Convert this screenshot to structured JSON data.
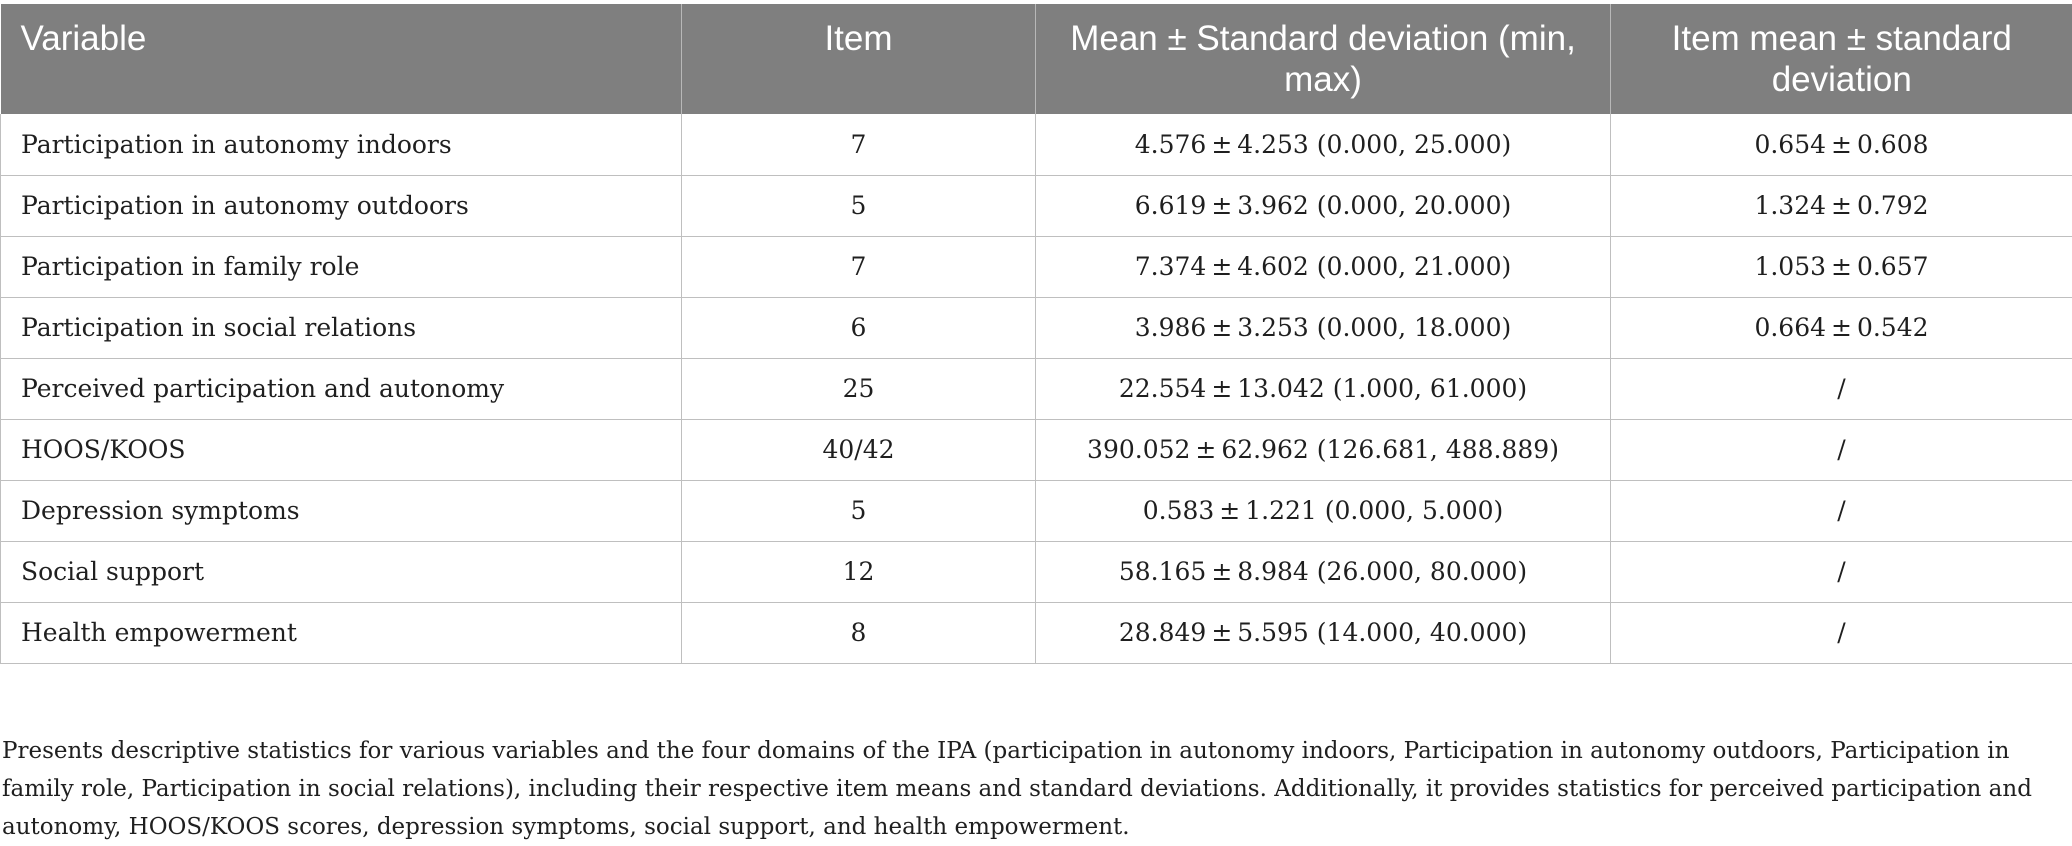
{
  "table": {
    "headers": [
      "Variable",
      "Item",
      "Mean ± Standard deviation (min, max)",
      "Item mean ± standard deviation"
    ],
    "rows": [
      [
        "Participation in autonomy indoors",
        "7",
        "4.576 ± 4.253 (0.000, 25.000)",
        "0.654 ± 0.608"
      ],
      [
        "Participation in autonomy outdoors",
        "5",
        "6.619 ± 3.962 (0.000, 20.000)",
        "1.324 ± 0.792"
      ],
      [
        "Participation in family role",
        "7",
        "7.374 ± 4.602 (0.000, 21.000)",
        "1.053 ± 0.657"
      ],
      [
        "Participation in social relations",
        "6",
        "3.986 ± 3.253 (0.000, 18.000)",
        "0.664 ± 0.542"
      ],
      [
        "Perceived participation and autonomy",
        "25",
        "22.554 ± 13.042 (1.000, 61.000)",
        "/"
      ],
      [
        "HOOS/KOOS",
        "40/42",
        "390.052 ± 62.962 (126.681, 488.889)",
        "/"
      ],
      [
        "Depression symptoms",
        "5",
        "0.583 ± 1.221 (0.000, 5.000)",
        "/"
      ],
      [
        "Social support",
        "12",
        "58.165 ± 8.984 (26.000, 80.000)",
        "/"
      ],
      [
        "Health empowerment",
        "8",
        "28.849 ± 5.595 (14.000, 40.000)",
        "/"
      ]
    ]
  },
  "footnote": "Presents descriptive statistics for various variables and the four domains of the IPA (participation in autonomy indoors, Participation in autonomy outdoors, Participation in family role, Participation in social relations), including their respective item means and standard deviations. Additionally, it provides statistics for perceived participation and autonomy, HOOS/KOOS scores, depression symptoms, social support, and health empowerment."
}
